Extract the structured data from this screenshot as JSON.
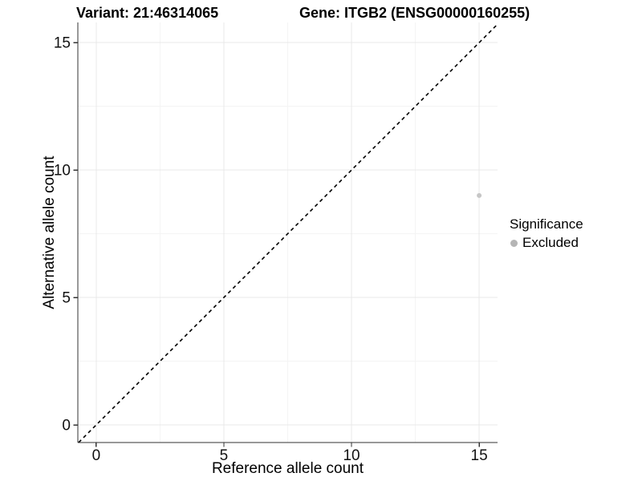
{
  "figure": {
    "title_variant": "Variant: 21:46314065",
    "title_gene": "Gene: ITGB2 (ENSG00000160255)"
  },
  "chart_data": {
    "type": "scatter",
    "title": "Variant: 21:46314065   Gene: ITGB2 (ENSG00000160255)",
    "xlabel": "Reference allele count",
    "ylabel": "Alternative allele count",
    "xlim": [
      -0.72,
      15.72
    ],
    "ylim": [
      -0.69,
      15.79
    ],
    "x_ticks": [
      0,
      5,
      10,
      15
    ],
    "y_ticks": [
      0,
      5,
      10,
      15
    ],
    "x_minor_gridlines": [
      2.5,
      7.5,
      12.5
    ],
    "y_minor_gridlines": [
      2.5,
      7.5,
      12.5
    ],
    "grid": "faint major and minor gridlines on white background",
    "reference_line": {
      "type": "identity",
      "slope": 1,
      "intercept": 0,
      "style": "dashed",
      "color": "#000000"
    },
    "series": [
      {
        "name": "Excluded",
        "color": "#c6c6c6",
        "points": [
          {
            "x": 15,
            "y": 9
          }
        ]
      }
    ],
    "legend": {
      "title": "Significance",
      "position": "right",
      "items": [
        {
          "label": "Excluded",
          "color": "#b5b5b5"
        }
      ]
    },
    "style_colors": {
      "background": "#ffffff",
      "grid_major": "#e8e8e8",
      "grid_minor": "#f4f4f4",
      "axis_line": "#333333",
      "tick_label": "#111111"
    }
  }
}
